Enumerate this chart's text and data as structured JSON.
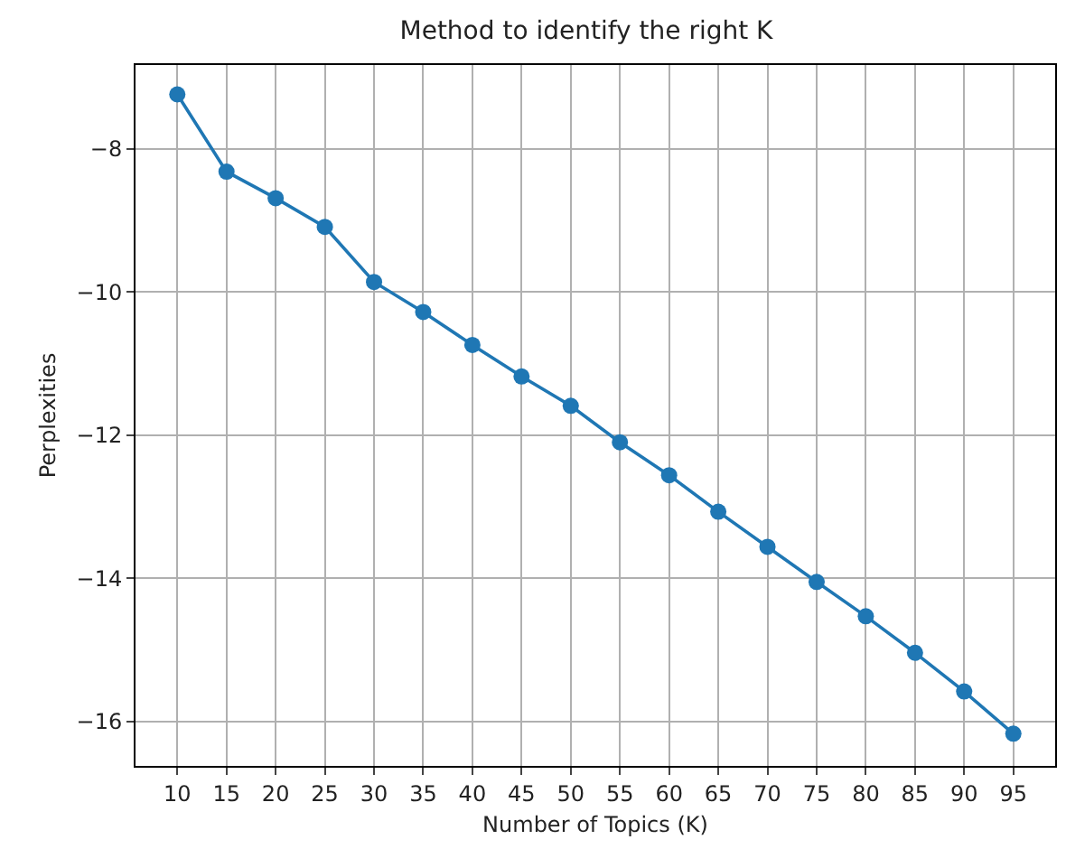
{
  "chart_data": {
    "type": "line",
    "title": "Method to identify the right K",
    "xlabel": "Number of Topics (K)",
    "ylabel": "Perplexities",
    "x": [
      10,
      15,
      20,
      25,
      30,
      35,
      40,
      45,
      50,
      55,
      60,
      65,
      70,
      75,
      80,
      85,
      90,
      95
    ],
    "series": [
      {
        "color": "#1f77b4",
        "values": [
          -7.24,
          -8.32,
          -8.69,
          -9.09,
          -9.86,
          -10.28,
          -10.74,
          -11.18,
          -11.59,
          -12.1,
          -12.56,
          -13.07,
          -13.56,
          -14.05,
          -14.53,
          -15.04,
          -15.58,
          -16.17
        ]
      }
    ],
    "xlim": [
      5.75,
      99.25
    ],
    "xticks": [
      10,
      15,
      20,
      25,
      30,
      35,
      40,
      45,
      50,
      55,
      60,
      65,
      70,
      75,
      80,
      85,
      90,
      95
    ],
    "ylim": [
      -16.62,
      -6.83
    ],
    "yticks": [
      -16,
      -14,
      -12,
      -10,
      -8
    ],
    "grid": true,
    "marker": "circle",
    "line_style": "solid",
    "legend": false
  }
}
